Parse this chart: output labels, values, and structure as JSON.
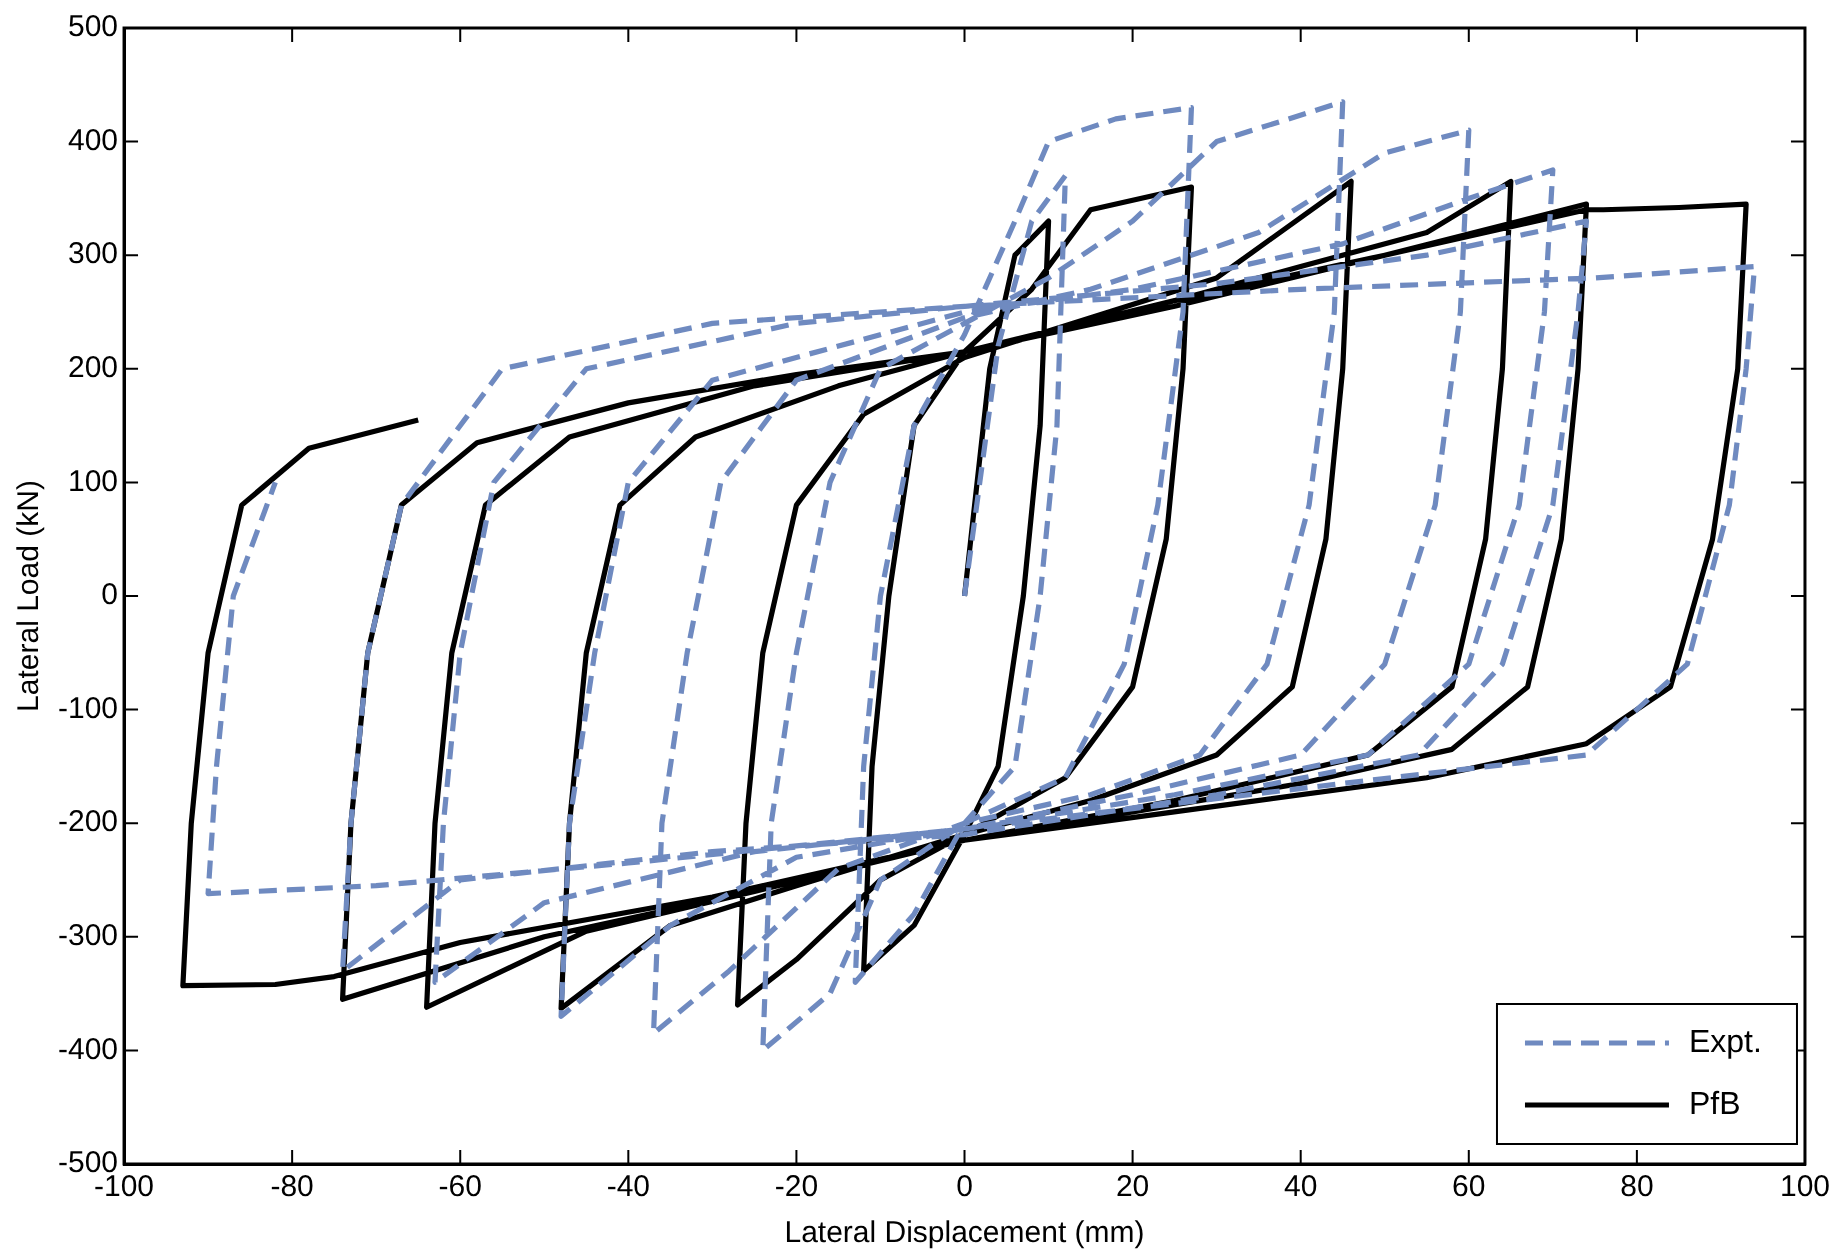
{
  "chart_data": {
    "type": "line",
    "xlabel": "Lateral Displacement (mm)",
    "ylabel": "Lateral Load (kN)",
    "xlim": [
      -100,
      100
    ],
    "xticks": [
      -100,
      -80,
      -60,
      -40,
      -20,
      0,
      20,
      40,
      60,
      80,
      100
    ],
    "ylim": [
      -500,
      500
    ],
    "yticks": [
      -500,
      -400,
      -300,
      -200,
      -100,
      0,
      100,
      200,
      300,
      400,
      500
    ],
    "grid": false,
    "legend": "bottom right",
    "marker": "none",
    "series": [
      {
        "name": "Expt.",
        "color": "#6f8ac0",
        "line_style": "dashed",
        "x": [
          0,
          4,
          8,
          12,
          11,
          9,
          6,
          0,
          -6,
          -13,
          -12,
          -10,
          -6,
          0,
          6,
          10,
          18,
          27,
          26,
          23,
          19,
          12,
          0,
          -10,
          -16,
          -24,
          -23,
          -20,
          -16,
          -10,
          0,
          10,
          20,
          30,
          45,
          44,
          41,
          36,
          28,
          15,
          0,
          -15,
          -28,
          -37,
          -36,
          -33,
          -29,
          -20,
          0,
          15,
          35,
          50,
          60,
          59,
          56,
          50,
          40,
          20,
          0,
          -20,
          -35,
          -48,
          -47,
          -44,
          -40,
          -30,
          0,
          20,
          45,
          60,
          70,
          69,
          66,
          60,
          48,
          25,
          0,
          -25,
          -50,
          -63,
          -62,
          -60,
          -56,
          -45,
          -20,
          0,
          30,
          55,
          74,
          73,
          70,
          64,
          54,
          30,
          0,
          -30,
          -60,
          -74,
          -73,
          -71,
          -67,
          -55,
          -30,
          0,
          40,
          75,
          94,
          93,
          91,
          86,
          74,
          45,
          0,
          -40,
          -70,
          -90,
          -89,
          -87,
          -82
        ],
        "values": [
          0,
          220,
          330,
          370,
          150,
          0,
          -150,
          -200,
          -280,
          -340,
          -150,
          0,
          150,
          230,
          330,
          400,
          420,
          430,
          250,
          80,
          -60,
          -160,
          -200,
          -250,
          -350,
          -400,
          -200,
          -50,
          100,
          200,
          240,
          280,
          330,
          400,
          435,
          250,
          80,
          -60,
          -140,
          -175,
          -200,
          -240,
          -330,
          -385,
          -200,
          -50,
          100,
          190,
          245,
          270,
          320,
          390,
          410,
          250,
          80,
          -60,
          -140,
          -175,
          -205,
          -230,
          -290,
          -370,
          -200,
          -50,
          100,
          190,
          250,
          270,
          310,
          350,
          375,
          250,
          80,
          -60,
          -140,
          -175,
          -205,
          -225,
          -270,
          -340,
          -200,
          -50,
          100,
          200,
          240,
          255,
          275,
          300,
          330,
          250,
          80,
          -60,
          -140,
          -175,
          -210,
          -225,
          -250,
          -330,
          -200,
          -50,
          80,
          200,
          240,
          255,
          270,
          280,
          290,
          200,
          80,
          -60,
          -140,
          -165,
          -205,
          -235,
          -255,
          -262,
          -150,
          0,
          100
        ]
      },
      {
        "name": "PfB",
        "color": "#000000",
        "line_style": "solid",
        "x": [
          0,
          3,
          6,
          10,
          9,
          7,
          4,
          0,
          -6,
          -12,
          -11,
          -9,
          -6,
          0,
          8,
          15,
          27,
          26,
          24,
          20,
          12,
          0,
          -10,
          -20,
          -27,
          -26,
          -24,
          -20,
          -12,
          0,
          15,
          30,
          46,
          45,
          43,
          39,
          30,
          15,
          0,
          -20,
          -35,
          -48,
          -47,
          -45,
          -41,
          -32,
          -15,
          0,
          20,
          40,
          55,
          65,
          64,
          62,
          58,
          48,
          25,
          0,
          -25,
          -45,
          -64,
          -63,
          -61,
          -57,
          -47,
          -25,
          0,
          25,
          50,
          74,
          73,
          71,
          67,
          58,
          40,
          20,
          0,
          -25,
          -50,
          -74,
          -73,
          -71,
          -67,
          -58,
          -40,
          -20,
          0,
          25,
          50,
          74,
          76,
          85,
          93,
          92,
          89,
          84,
          74,
          55,
          30,
          0,
          -30,
          -60,
          -75,
          -82,
          -93,
          -92,
          -90,
          -86,
          -78,
          -65
        ],
        "values": [
          0,
          200,
          300,
          330,
          150,
          0,
          -150,
          -210,
          -290,
          -330,
          -150,
          0,
          150,
          215,
          270,
          340,
          360,
          200,
          50,
          -80,
          -160,
          -210,
          -250,
          -320,
          -360,
          -200,
          -50,
          80,
          160,
          210,
          245,
          280,
          365,
          200,
          50,
          -80,
          -140,
          -180,
          -210,
          -255,
          -290,
          -363,
          -200,
          -50,
          80,
          140,
          185,
          215,
          250,
          290,
          320,
          365,
          200,
          50,
          -80,
          -140,
          -180,
          -215,
          -260,
          -295,
          -362,
          -200,
          -50,
          80,
          140,
          185,
          215,
          255,
          300,
          345,
          200,
          50,
          -80,
          -135,
          -165,
          -190,
          -215,
          -260,
          -300,
          -355,
          -200,
          -50,
          80,
          135,
          170,
          195,
          215,
          260,
          300,
          340,
          340,
          342,
          345,
          200,
          50,
          -80,
          -130,
          -160,
          -185,
          -215,
          -265,
          -305,
          -335,
          -342,
          -343,
          -200,
          -50,
          80,
          130,
          155
        ]
      }
    ]
  }
}
